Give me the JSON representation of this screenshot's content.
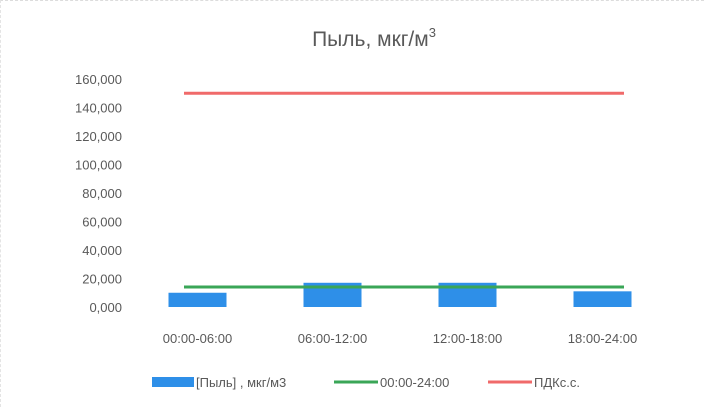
{
  "chart_data": {
    "type": "bar",
    "title": "Пыль, мкг/м",
    "title_superscript": "3",
    "categories": [
      "00:00-06:00",
      "06:00-12:00",
      "12:00-18:00",
      "18:00-24:00"
    ],
    "ylim": [
      0,
      160
    ],
    "y_ticks": [
      "0,000",
      "20,000",
      "40,000",
      "60,000",
      "80,000",
      "100,000",
      "120,000",
      "140,000",
      "160,000"
    ],
    "series": [
      {
        "name": "[Пыль] , мкг/м3",
        "kind": "bar",
        "color": "#2e8fe8",
        "values": [
          10,
          17,
          17,
          11
        ]
      },
      {
        "name": "00:00-24:00",
        "kind": "line",
        "color": "#3aa657",
        "values": [
          14,
          14,
          14,
          14
        ]
      },
      {
        "name": "ПДКс.с.",
        "kind": "line",
        "color": "#f06a6a",
        "values": [
          150,
          150,
          150,
          150
        ]
      }
    ],
    "grid": false,
    "legend_position": "bottom"
  }
}
